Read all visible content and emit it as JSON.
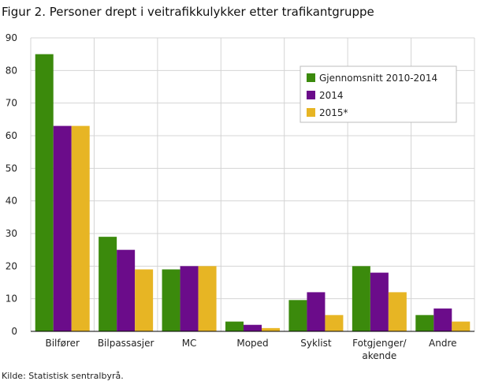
{
  "figure_title": "Figur 2. Personer drept i veitrafikkulykker etter trafikantgruppe",
  "source_note": "Kilde: Statistisk sentralbyrå.",
  "colors": {
    "series_1": "#3b8a0c",
    "series_2": "#6b0c8a",
    "series_3": "#e7b524",
    "grid": "#d4d4d4"
  },
  "chart_data": {
    "type": "bar",
    "categories": [
      [
        "Bilfører"
      ],
      [
        "Bilpassasjer"
      ],
      [
        "MC"
      ],
      [
        "Moped"
      ],
      [
        "Syklist"
      ],
      [
        "Fotgjenger/",
        "akende"
      ],
      [
        "Andre"
      ]
    ],
    "series": [
      {
        "name": "Gjennomsnitt 2010-2014",
        "values": [
          85,
          29,
          19,
          3,
          9.6,
          20,
          5
        ]
      },
      {
        "name": "2014",
        "values": [
          63,
          25,
          20,
          2,
          12,
          18,
          7
        ]
      },
      {
        "name": "2015*",
        "values": [
          63,
          19,
          20,
          1,
          5,
          12,
          3
        ]
      }
    ],
    "ylim": [
      0,
      90
    ],
    "yticks": [
      0,
      10,
      20,
      30,
      40,
      50,
      60,
      70,
      80,
      90
    ],
    "grid": true,
    "legend_position": "top-right"
  }
}
